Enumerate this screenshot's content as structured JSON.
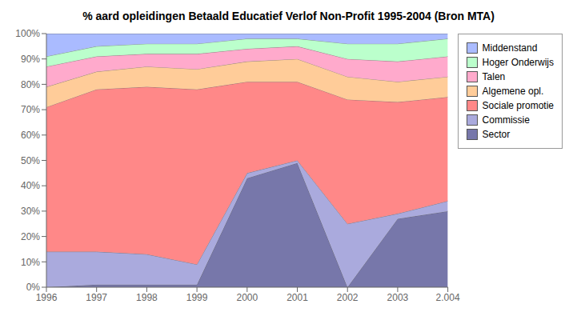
{
  "chart_data": {
    "type": "area",
    "title": "% aard opleidingen Betaald Educatief Verlof Non-Profit 1995-2004 (Bron MTA)",
    "stacked": true,
    "grid": false,
    "legend": "right",
    "x": [
      1996,
      1997,
      1998,
      1999,
      2000,
      2001,
      2002,
      2003,
      2004
    ],
    "xlim": [
      1996,
      2004
    ],
    "xticks": [
      1996,
      1997,
      1998,
      1999,
      2000,
      2001,
      2002,
      2003,
      {
        "value": 2004,
        "label": "2.004"
      }
    ],
    "ylim": [
      0,
      100
    ],
    "yticks": [
      {
        "value": 0,
        "label": "0%"
      },
      {
        "value": 10,
        "label": "10%"
      },
      {
        "value": 20,
        "label": "20%"
      },
      {
        "value": 30,
        "label": "30%"
      },
      {
        "value": 40,
        "label": "40%"
      },
      {
        "value": 50,
        "label": "50%"
      },
      {
        "value": 60,
        "label": "60%"
      },
      {
        "value": 70,
        "label": "70%"
      },
      {
        "value": 80,
        "label": "80%"
      },
      {
        "value": 90,
        "label": "90%"
      },
      {
        "value": 100,
        "label": "100%"
      }
    ],
    "series": [
      {
        "name": "Sector",
        "color": "#7777aa",
        "values": [
          0,
          1,
          1,
          1,
          43,
          49,
          0,
          27,
          30
        ]
      },
      {
        "name": "Commissie",
        "color": "#aaaadd",
        "values": [
          14,
          13,
          12,
          8,
          2,
          1,
          25,
          2,
          4
        ]
      },
      {
        "name": "Sociale promotie",
        "color": "#ff8888",
        "values": [
          57,
          64,
          66,
          69,
          36,
          31,
          49,
          44,
          41
        ]
      },
      {
        "name": "Algemene opl.",
        "color": "#ffcc99",
        "values": [
          8,
          7,
          8,
          8,
          8,
          9,
          9,
          8,
          8
        ]
      },
      {
        "name": "Talen",
        "color": "#ffaacc",
        "values": [
          8,
          6,
          5,
          6,
          5,
          5,
          7,
          8,
          8
        ]
      },
      {
        "name": "Hoger Onderwijs",
        "color": "#bbffcc",
        "values": [
          4,
          4,
          4,
          4,
          4,
          3,
          6,
          7,
          7
        ]
      },
      {
        "name": "Middenstand",
        "color": "#aabbff",
        "values": [
          9,
          5,
          4,
          4,
          2,
          2,
          4,
          4,
          2
        ]
      }
    ]
  }
}
